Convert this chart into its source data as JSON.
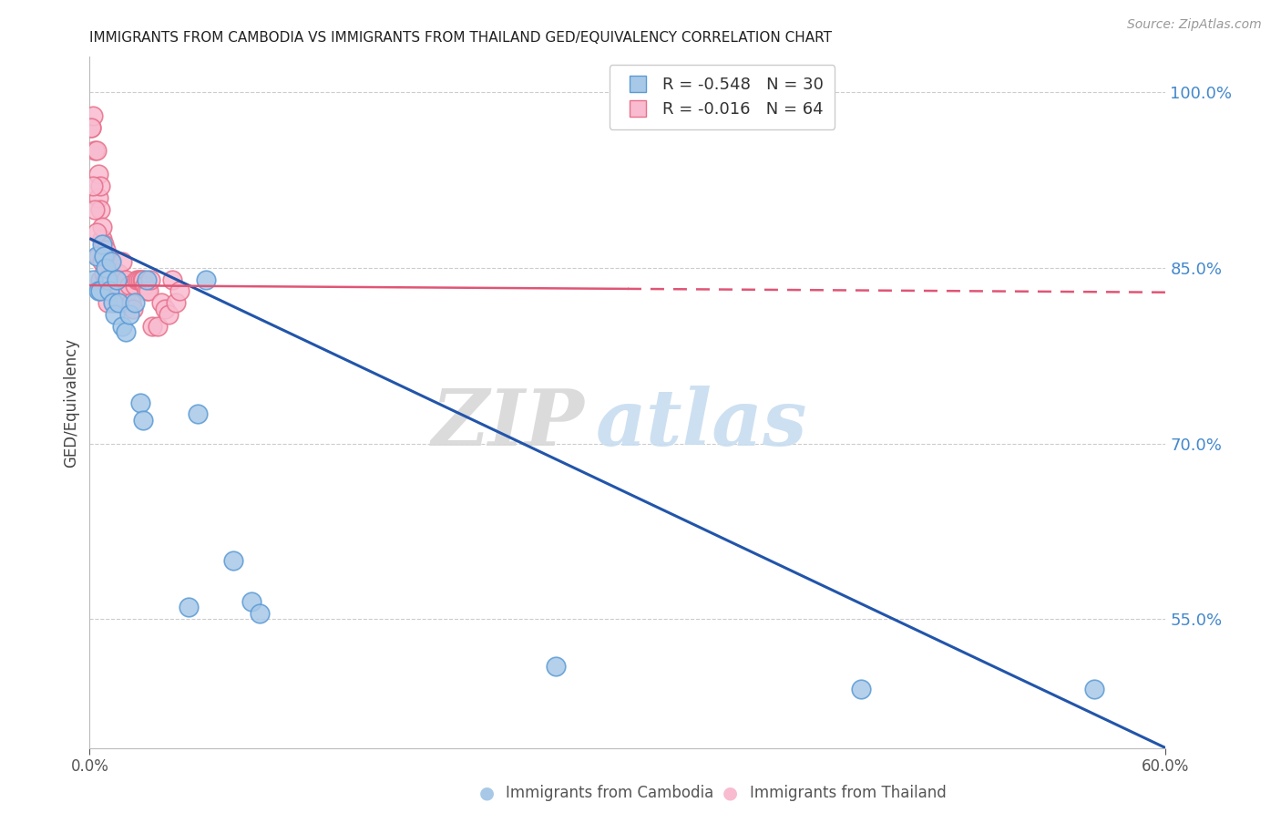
{
  "title": "IMMIGRANTS FROM CAMBODIA VS IMMIGRANTS FROM THAILAND GED/EQUIVALENCY CORRELATION CHART",
  "source": "Source: ZipAtlas.com",
  "ylabel": "GED/Equivalency",
  "right_yticks": [
    55.0,
    70.0,
    85.0,
    100.0
  ],
  "xlim": [
    0.0,
    0.6
  ],
  "ylim": [
    0.44,
    1.03
  ],
  "cambodia_color": "#a8c8e8",
  "thailand_color": "#f8bbd0",
  "cambodia_edge": "#5b9bd5",
  "thailand_edge": "#e8708a",
  "trend_cambodia_color": "#2255aa",
  "trend_thailand_color": "#e05575",
  "watermark_zip": "ZIP",
  "watermark_atlas": "atlas",
  "cambodia_scatter_x": [
    0.002,
    0.004,
    0.005,
    0.006,
    0.007,
    0.008,
    0.009,
    0.01,
    0.011,
    0.012,
    0.013,
    0.014,
    0.015,
    0.016,
    0.018,
    0.02,
    0.022,
    0.025,
    0.028,
    0.03,
    0.032,
    0.055,
    0.06,
    0.065,
    0.08,
    0.09,
    0.095,
    0.26,
    0.43,
    0.56
  ],
  "cambodia_scatter_y": [
    0.84,
    0.86,
    0.83,
    0.83,
    0.87,
    0.86,
    0.85,
    0.84,
    0.83,
    0.855,
    0.82,
    0.81,
    0.84,
    0.82,
    0.8,
    0.795,
    0.81,
    0.82,
    0.735,
    0.72,
    0.84,
    0.56,
    0.725,
    0.84,
    0.6,
    0.565,
    0.555,
    0.51,
    0.49,
    0.49
  ],
  "cambodia_trend_x": [
    0.0,
    0.6
  ],
  "cambodia_trend_y": [
    0.875,
    0.44
  ],
  "thailand_scatter_x": [
    0.001,
    0.002,
    0.003,
    0.004,
    0.005,
    0.005,
    0.006,
    0.006,
    0.007,
    0.007,
    0.008,
    0.008,
    0.009,
    0.009,
    0.01,
    0.01,
    0.011,
    0.011,
    0.012,
    0.012,
    0.013,
    0.013,
    0.014,
    0.014,
    0.015,
    0.015,
    0.016,
    0.016,
    0.017,
    0.018,
    0.019,
    0.02,
    0.021,
    0.022,
    0.023,
    0.024,
    0.025,
    0.026,
    0.027,
    0.028,
    0.029,
    0.03,
    0.031,
    0.032,
    0.033,
    0.034,
    0.035,
    0.038,
    0.04,
    0.042,
    0.044,
    0.046,
    0.048,
    0.05,
    0.001,
    0.002,
    0.003,
    0.004,
    0.005,
    0.006,
    0.007,
    0.008,
    0.009,
    0.01
  ],
  "thailand_scatter_y": [
    0.97,
    0.98,
    0.95,
    0.95,
    0.93,
    0.91,
    0.92,
    0.9,
    0.875,
    0.885,
    0.87,
    0.86,
    0.865,
    0.855,
    0.86,
    0.84,
    0.855,
    0.84,
    0.84,
    0.855,
    0.83,
    0.82,
    0.84,
    0.84,
    0.835,
    0.845,
    0.845,
    0.835,
    0.84,
    0.855,
    0.82,
    0.84,
    0.83,
    0.835,
    0.82,
    0.815,
    0.835,
    0.84,
    0.84,
    0.84,
    0.84,
    0.84,
    0.835,
    0.83,
    0.83,
    0.84,
    0.8,
    0.8,
    0.82,
    0.815,
    0.81,
    0.84,
    0.82,
    0.83,
    0.97,
    0.92,
    0.9,
    0.88,
    0.86,
    0.84,
    0.855,
    0.845,
    0.84,
    0.82
  ],
  "thailand_trend_x": [
    0.0,
    0.3,
    0.6
  ],
  "thailand_trend_y": [
    0.835,
    0.832,
    0.829
  ]
}
